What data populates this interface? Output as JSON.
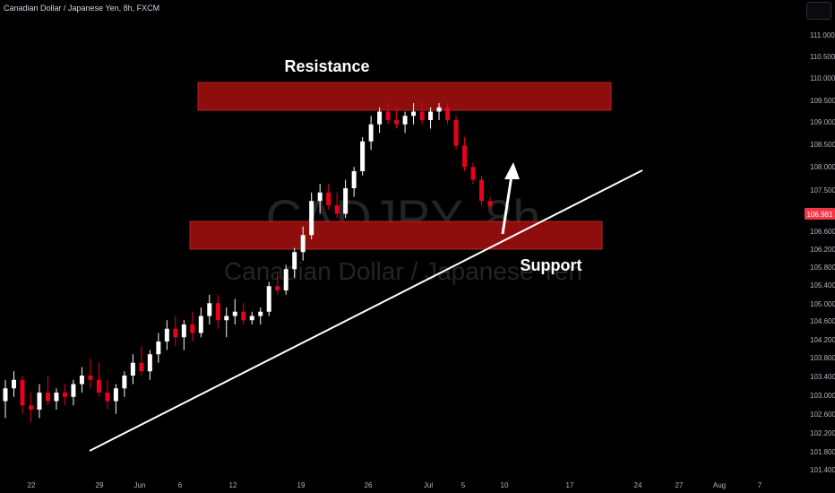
{
  "header": {
    "symbol_description": "Canadian Dollar / Japanese Yen, 8h, FXCM"
  },
  "watermark": {
    "symbol": "CADJPY, 8h",
    "description": "Canadian Dollar / Japanese Yen"
  },
  "annotations": {
    "resistance_label": "Resistance",
    "support_label": "Support"
  },
  "colors": {
    "background": "#000000",
    "up_candle": "#ffffff",
    "down_candle": "#e8001c",
    "zone_fill": "#8e0d0d",
    "axis_text": "#b2b5be",
    "price_tag": "#f23645"
  },
  "chart_data": {
    "type": "candlestick",
    "x_ticks": [
      "22",
      "29",
      "Jun",
      "6",
      "12",
      "19",
      "26",
      "Jul",
      "5",
      "10",
      "17",
      "24",
      "27",
      "Aug",
      "7"
    ],
    "y_ticks": [
      "111.000",
      "110.500",
      "110.000",
      "109.500",
      "109.000",
      "108.500",
      "108.000",
      "107.500",
      "107.000",
      "106.600",
      "106.200",
      "105.800",
      "105.400",
      "105.000",
      "104.600",
      "104.200",
      "103.800",
      "103.400",
      "103.000",
      "102.600",
      "102.200",
      "101.800",
      "101.400"
    ],
    "current_price": "106.981",
    "ohlc": [
      [
        102.4,
        102.9,
        102.0,
        102.7
      ],
      [
        102.7,
        103.1,
        102.5,
        102.9
      ],
      [
        102.9,
        103.0,
        102.1,
        102.3
      ],
      [
        102.3,
        102.6,
        101.9,
        102.2
      ],
      [
        102.2,
        102.8,
        102.0,
        102.6
      ],
      [
        102.6,
        103.0,
        102.3,
        102.4
      ],
      [
        102.4,
        102.7,
        102.2,
        102.6
      ],
      [
        102.6,
        102.8,
        102.3,
        102.5
      ],
      [
        102.5,
        102.9,
        102.3,
        102.8
      ],
      [
        102.8,
        103.2,
        102.6,
        103.0
      ],
      [
        103.0,
        103.4,
        102.7,
        102.9
      ],
      [
        102.9,
        103.3,
        102.5,
        102.6
      ],
      [
        102.6,
        102.9,
        102.2,
        102.4
      ],
      [
        102.4,
        102.8,
        102.1,
        102.7
      ],
      [
        102.7,
        103.1,
        102.5,
        103.0
      ],
      [
        103.0,
        103.5,
        102.8,
        103.3
      ],
      [
        103.3,
        103.7,
        103.0,
        103.1
      ],
      [
        103.1,
        103.6,
        102.9,
        103.5
      ],
      [
        103.5,
        104.0,
        103.3,
        103.8
      ],
      [
        103.8,
        104.3,
        103.6,
        104.1
      ],
      [
        104.1,
        104.4,
        103.7,
        103.9
      ],
      [
        103.9,
        104.3,
        103.6,
        104.2
      ],
      [
        104.2,
        104.5,
        103.8,
        104.0
      ],
      [
        104.0,
        104.6,
        103.9,
        104.4
      ],
      [
        104.4,
        104.9,
        104.2,
        104.7
      ],
      [
        104.7,
        104.9,
        104.1,
        104.3
      ],
      [
        104.3,
        104.6,
        103.9,
        104.4
      ],
      [
        104.4,
        104.8,
        104.2,
        104.5
      ],
      [
        104.5,
        104.7,
        104.2,
        104.3
      ],
      [
        104.3,
        104.5,
        104.2,
        104.4
      ],
      [
        104.4,
        104.6,
        104.2,
        104.5
      ],
      [
        104.5,
        105.2,
        104.4,
        105.1
      ],
      [
        105.1,
        105.4,
        104.9,
        105.0
      ],
      [
        105.0,
        105.6,
        104.9,
        105.5
      ],
      [
        105.5,
        106.0,
        105.3,
        105.9
      ],
      [
        105.9,
        106.5,
        105.7,
        106.3
      ],
      [
        106.3,
        107.3,
        106.2,
        107.1
      ],
      [
        107.1,
        107.5,
        106.8,
        107.3
      ],
      [
        107.3,
        107.5,
        106.9,
        107.0
      ],
      [
        107.0,
        107.3,
        106.7,
        106.8
      ],
      [
        106.8,
        107.6,
        106.7,
        107.4
      ],
      [
        107.4,
        107.9,
        107.2,
        107.8
      ],
      [
        107.8,
        108.6,
        107.7,
        108.5
      ],
      [
        108.5,
        109.1,
        108.3,
        108.9
      ],
      [
        108.9,
        109.3,
        108.7,
        109.2
      ],
      [
        109.2,
        109.4,
        108.9,
        109.0
      ],
      [
        109.0,
        109.3,
        108.8,
        108.9
      ],
      [
        108.9,
        109.2,
        108.7,
        109.1
      ],
      [
        109.1,
        109.4,
        108.9,
        109.2
      ],
      [
        109.2,
        109.4,
        108.9,
        109.0
      ],
      [
        109.0,
        109.3,
        108.8,
        109.2
      ],
      [
        109.2,
        109.4,
        109.0,
        109.3
      ],
      [
        109.3,
        109.4,
        108.9,
        109.0
      ],
      [
        109.0,
        109.1,
        108.3,
        108.4
      ],
      [
        108.4,
        108.6,
        107.8,
        107.9
      ],
      [
        107.9,
        108.0,
        107.5,
        107.6
      ],
      [
        107.6,
        107.7,
        107.0,
        107.1
      ],
      [
        107.1,
        107.2,
        106.9,
        106.981
      ]
    ]
  }
}
